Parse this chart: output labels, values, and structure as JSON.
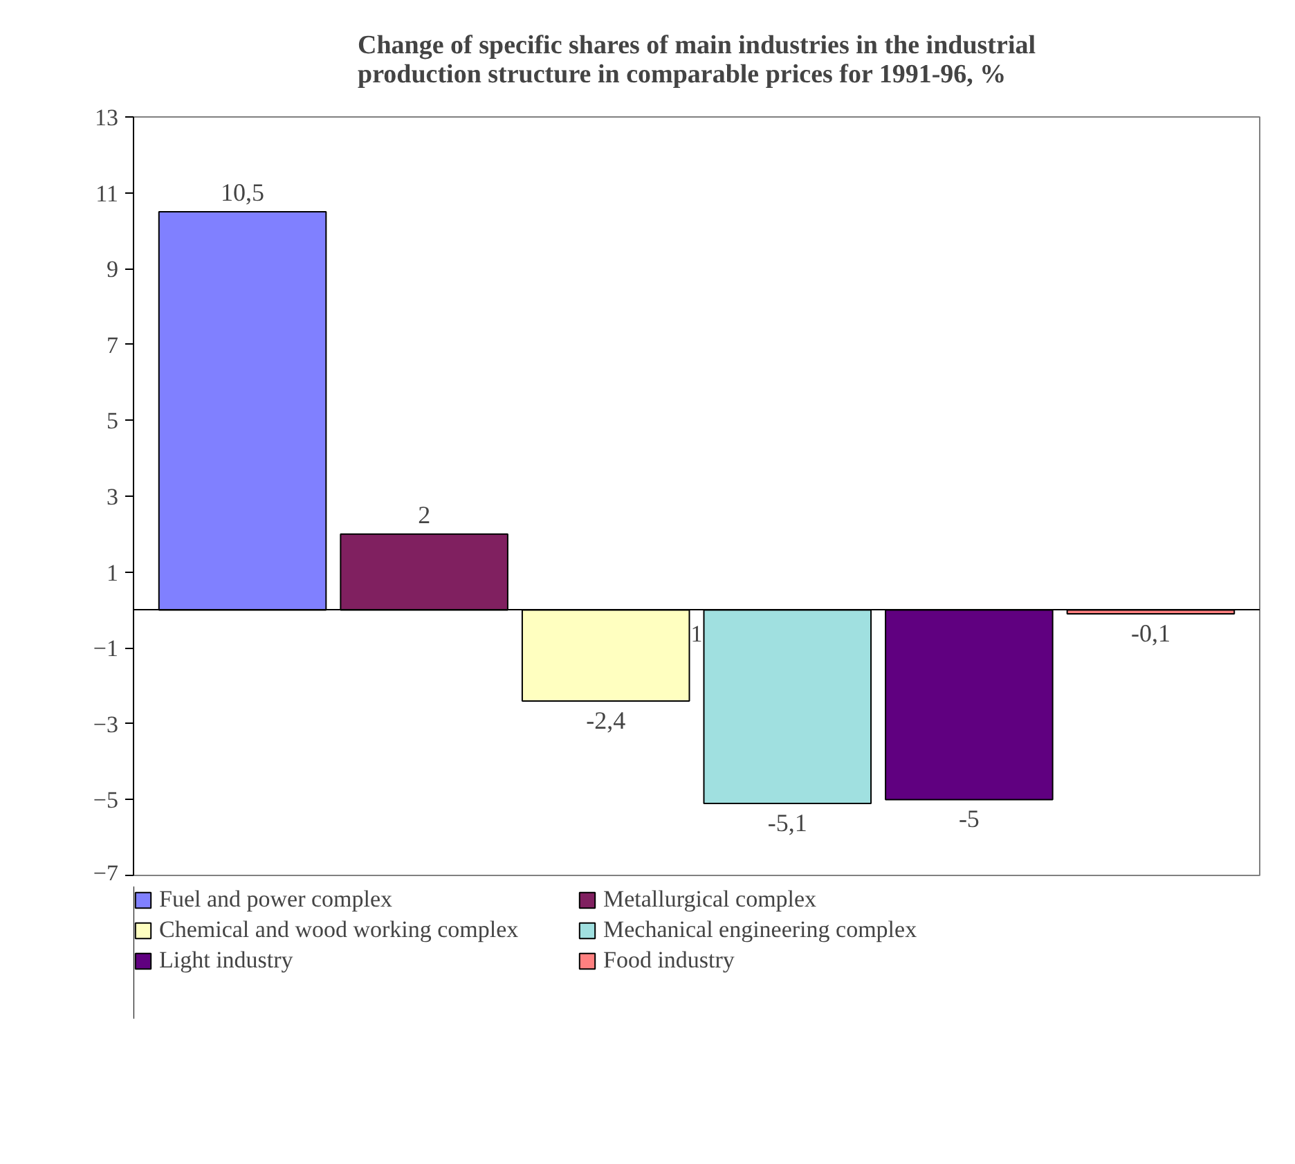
{
  "chart_data": {
    "type": "bar",
    "title": "Change of specific shares of main industries in the industrial\nproduction structure in comparable prices for 1991-96, %",
    "categories": [
      "1"
    ],
    "series": [
      {
        "name": "Fuel and power complex",
        "color": "#8080ff",
        "values": [
          10.5
        ],
        "value_labels": [
          "10,5"
        ]
      },
      {
        "name": "Metallurgical complex",
        "color": "#802060",
        "values": [
          2
        ],
        "value_labels": [
          "2"
        ]
      },
      {
        "name": "Chemical and wood working complex",
        "color": "#ffffc0",
        "values": [
          -2.4
        ],
        "value_labels": [
          "-2,4"
        ]
      },
      {
        "name": "Mechanical engineering complex",
        "color": "#a0e0e0",
        "values": [
          -5.1
        ],
        "value_labels": [
          "-5,1"
        ]
      },
      {
        "name": "Light industry",
        "color": "#600080",
        "values": [
          -5
        ],
        "value_labels": [
          "-5"
        ]
      },
      {
        "name": "Food industry",
        "color": "#ff8080",
        "values": [
          -0.1
        ],
        "value_labels": [
          "-0,1"
        ]
      }
    ],
    "ylim": [
      -7,
      13
    ],
    "yticks": [
      -7,
      -5,
      -3,
      -1,
      1,
      3,
      5,
      7,
      9,
      11,
      13
    ],
    "grid": false,
    "legend": "bottom"
  }
}
